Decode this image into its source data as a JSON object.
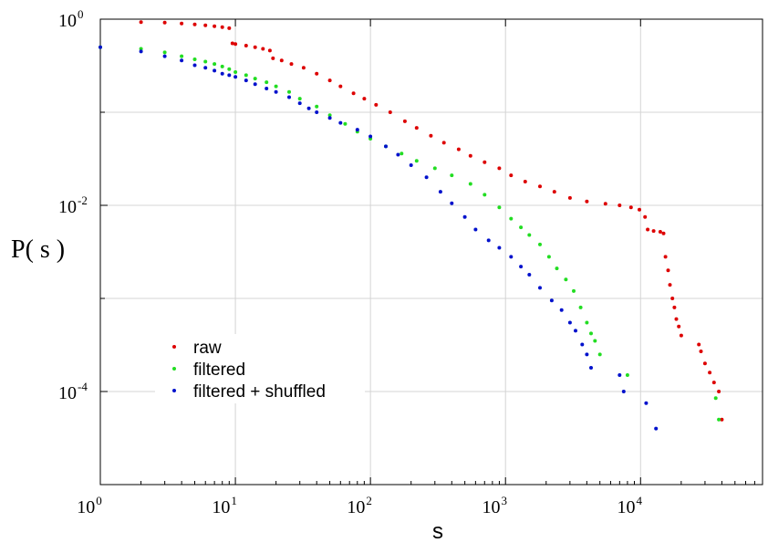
{
  "chart_data": {
    "type": "scatter",
    "title": "",
    "xlabel": "s",
    "ylabel": "P( s )",
    "xscale": "log",
    "yscale": "log",
    "xlim": [
      1,
      80000
    ],
    "ylim": [
      1e-05,
      1
    ],
    "grid": true,
    "legend_placement": "bottom-left",
    "x_ticks": [
      {
        "base": "10",
        "exp": "0"
      },
      {
        "base": "10",
        "exp": "1"
      },
      {
        "base": "10",
        "exp": "2"
      },
      {
        "base": "10",
        "exp": "3"
      },
      {
        "base": "10",
        "exp": "4"
      }
    ],
    "y_ticks": [
      {
        "base": "10",
        "exp": "0"
      },
      {
        "base": "10",
        "exp": "-2"
      },
      {
        "base": "10",
        "exp": "-4"
      }
    ],
    "series": [
      {
        "name": "raw",
        "color": "#dd0000",
        "points": [
          [
            2,
            0.93
          ],
          [
            3,
            0.92
          ],
          [
            4,
            0.9
          ],
          [
            5,
            0.88
          ],
          [
            6,
            0.86
          ],
          [
            7,
            0.84
          ],
          [
            8,
            0.82
          ],
          [
            9,
            0.8
          ],
          [
            9.5,
            0.55
          ],
          [
            10,
            0.54
          ],
          [
            12,
            0.52
          ],
          [
            14,
            0.5
          ],
          [
            16,
            0.48
          ],
          [
            18,
            0.46
          ],
          [
            19,
            0.38
          ],
          [
            22,
            0.36
          ],
          [
            26,
            0.33
          ],
          [
            32,
            0.3
          ],
          [
            40,
            0.26
          ],
          [
            50,
            0.22
          ],
          [
            60,
            0.19
          ],
          [
            75,
            0.16
          ],
          [
            90,
            0.14
          ],
          [
            110,
            0.12
          ],
          [
            140,
            0.1
          ],
          [
            180,
            0.08
          ],
          [
            220,
            0.068
          ],
          [
            280,
            0.056
          ],
          [
            350,
            0.047
          ],
          [
            450,
            0.04
          ],
          [
            550,
            0.034
          ],
          [
            700,
            0.029
          ],
          [
            900,
            0.025
          ],
          [
            1100,
            0.021
          ],
          [
            1400,
            0.018
          ],
          [
            1800,
            0.016
          ],
          [
            2300,
            0.014
          ],
          [
            3000,
            0.012
          ],
          [
            4000,
            0.011
          ],
          [
            5500,
            0.0104
          ],
          [
            7000,
            0.01
          ],
          [
            8500,
            0.0095
          ],
          [
            9800,
            0.009
          ],
          [
            10800,
            0.0075
          ],
          [
            11300,
            0.0055
          ],
          [
            12500,
            0.0053
          ],
          [
            14000,
            0.0052
          ],
          [
            14800,
            0.005
          ],
          [
            15300,
            0.0028
          ],
          [
            16000,
            0.002
          ],
          [
            16500,
            0.0014
          ],
          [
            17200,
            0.001
          ],
          [
            17800,
            0.0008
          ],
          [
            18400,
            0.0006
          ],
          [
            19200,
            0.0005
          ],
          [
            20000,
            0.0004
          ],
          [
            27000,
            0.00032
          ],
          [
            28000,
            0.00027
          ],
          [
            30000,
            0.0002
          ],
          [
            32500,
            0.00016
          ],
          [
            35000,
            0.000125
          ],
          [
            38000,
            0.0001
          ],
          [
            40000,
            5e-05
          ]
        ]
      },
      {
        "name": "filtered",
        "color": "#22dd22",
        "points": [
          [
            1,
            0.5
          ],
          [
            2,
            0.48
          ],
          [
            3,
            0.44
          ],
          [
            4,
            0.4
          ],
          [
            5,
            0.37
          ],
          [
            6,
            0.35
          ],
          [
            7,
            0.33
          ],
          [
            8,
            0.31
          ],
          [
            9,
            0.29
          ],
          [
            10,
            0.27
          ],
          [
            12,
            0.25
          ],
          [
            14,
            0.23
          ],
          [
            17,
            0.21
          ],
          [
            20,
            0.19
          ],
          [
            25,
            0.165
          ],
          [
            30,
            0.14
          ],
          [
            40,
            0.115
          ],
          [
            50,
            0.093
          ],
          [
            65,
            0.075
          ],
          [
            80,
            0.062
          ],
          [
            100,
            0.052
          ],
          [
            130,
            0.043
          ],
          [
            170,
            0.036
          ],
          [
            220,
            0.03
          ],
          [
            300,
            0.025
          ],
          [
            400,
            0.021
          ],
          [
            550,
            0.017
          ],
          [
            700,
            0.013
          ],
          [
            900,
            0.0095
          ],
          [
            1100,
            0.0072
          ],
          [
            1300,
            0.0058
          ],
          [
            1500,
            0.0048
          ],
          [
            1800,
            0.0038
          ],
          [
            2100,
            0.0028
          ],
          [
            2400,
            0.0021
          ],
          [
            2800,
            0.0016
          ],
          [
            3200,
            0.0012
          ],
          [
            3600,
            0.0008
          ],
          [
            4000,
            0.00055
          ],
          [
            4300,
            0.00042
          ],
          [
            4600,
            0.00035
          ],
          [
            5000,
            0.00025
          ],
          [
            8000,
            0.00015
          ],
          [
            36000,
            8.5e-05
          ],
          [
            38000,
            5e-05
          ]
        ]
      },
      {
        "name": "filtered + shuffled",
        "color": "#0011cc",
        "points": [
          [
            1,
            0.5
          ],
          [
            2,
            0.45
          ],
          [
            3,
            0.4
          ],
          [
            4,
            0.36
          ],
          [
            5,
            0.32
          ],
          [
            6,
            0.3
          ],
          [
            7,
            0.28
          ],
          [
            8,
            0.26
          ],
          [
            9,
            0.25
          ],
          [
            10,
            0.24
          ],
          [
            12,
            0.22
          ],
          [
            14,
            0.2
          ],
          [
            17,
            0.18
          ],
          [
            20,
            0.165
          ],
          [
            25,
            0.145
          ],
          [
            30,
            0.125
          ],
          [
            35,
            0.11
          ],
          [
            40,
            0.1
          ],
          [
            50,
            0.087
          ],
          [
            60,
            0.077
          ],
          [
            80,
            0.065
          ],
          [
            100,
            0.055
          ],
          [
            130,
            0.043
          ],
          [
            160,
            0.035
          ],
          [
            200,
            0.027
          ],
          [
            260,
            0.02
          ],
          [
            330,
            0.014
          ],
          [
            400,
            0.0105
          ],
          [
            500,
            0.0075
          ],
          [
            600,
            0.0055
          ],
          [
            750,
            0.0042
          ],
          [
            900,
            0.0035
          ],
          [
            1100,
            0.0028
          ],
          [
            1300,
            0.0022
          ],
          [
            1500,
            0.0018
          ],
          [
            1800,
            0.0013
          ],
          [
            2200,
            0.00095
          ],
          [
            2600,
            0.00075
          ],
          [
            3000,
            0.00055
          ],
          [
            3300,
            0.00045
          ],
          [
            3700,
            0.00032
          ],
          [
            4000,
            0.00025
          ],
          [
            4300,
            0.00018
          ],
          [
            7000,
            0.00015
          ],
          [
            7500,
            0.0001
          ],
          [
            11000,
            7.5e-05
          ],
          [
            13000,
            4e-05
          ]
        ]
      }
    ]
  }
}
